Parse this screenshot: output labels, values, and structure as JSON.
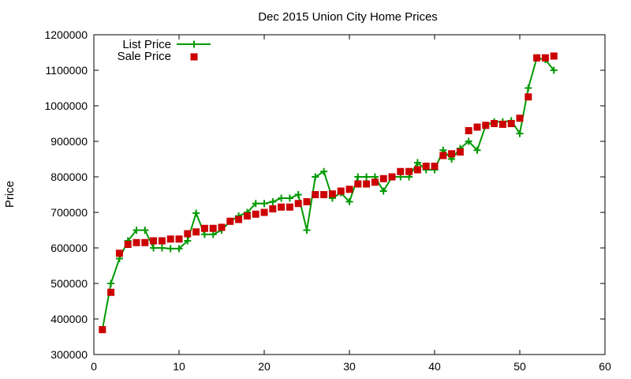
{
  "chart_data": {
    "type": "line",
    "title": "Dec 2015 Union City Home Prices",
    "xlabel": "",
    "ylabel": "Price",
    "xlim": [
      0,
      60
    ],
    "ylim": [
      300000,
      1200000
    ],
    "xticks": [
      0,
      10,
      20,
      30,
      40,
      50,
      60
    ],
    "yticks": [
      300000,
      400000,
      500000,
      600000,
      700000,
      800000,
      900000,
      1000000,
      1100000,
      1200000
    ],
    "grid": false,
    "legend_position": "top-left",
    "series": [
      {
        "name": "List Price",
        "style": "line+plus-markers",
        "color": "#009900",
        "x": [
          1,
          2,
          3,
          4,
          5,
          6,
          7,
          8,
          9,
          10,
          11,
          12,
          13,
          14,
          15,
          16,
          17,
          18,
          19,
          20,
          21,
          22,
          23,
          24,
          25,
          26,
          27,
          28,
          29,
          30,
          31,
          32,
          33,
          34,
          35,
          36,
          37,
          38,
          39,
          40,
          41,
          42,
          43,
          44,
          45,
          46,
          47,
          48,
          49,
          50,
          51,
          52,
          53,
          54
        ],
        "y": [
          370000,
          500000,
          570000,
          620000,
          650000,
          650000,
          600000,
          600000,
          598000,
          598000,
          620000,
          698000,
          638000,
          638000,
          650000,
          675000,
          690000,
          700000,
          725000,
          725000,
          730000,
          740000,
          740000,
          750000,
          650000,
          800000,
          815000,
          740000,
          755000,
          730000,
          800000,
          800000,
          800000,
          760000,
          800000,
          800000,
          800000,
          840000,
          820000,
          820000,
          875000,
          850000,
          880000,
          900000,
          875000,
          945000,
          955000,
          955000,
          958000,
          922000,
          1050000,
          1135000,
          1130000,
          1100000
        ]
      },
      {
        "name": "Sale Price",
        "style": "square-markers",
        "color": "#cc0000",
        "x": [
          1,
          2,
          3,
          4,
          5,
          6,
          7,
          8,
          9,
          10,
          11,
          12,
          13,
          14,
          15,
          16,
          17,
          18,
          19,
          20,
          21,
          22,
          23,
          24,
          25,
          26,
          27,
          28,
          29,
          30,
          31,
          32,
          33,
          34,
          35,
          36,
          37,
          38,
          39,
          40,
          41,
          42,
          43,
          44,
          45,
          46,
          47,
          48,
          49,
          50,
          51,
          52,
          53,
          54
        ],
        "y": [
          370000,
          475000,
          585000,
          610000,
          615000,
          615000,
          620000,
          620000,
          625000,
          625000,
          640000,
          645000,
          655000,
          655000,
          658000,
          675000,
          680000,
          690000,
          695000,
          700000,
          710000,
          715000,
          715000,
          725000,
          730000,
          750000,
          750000,
          752000,
          760000,
          765000,
          780000,
          780000,
          785000,
          795000,
          800000,
          815000,
          815000,
          820000,
          830000,
          830000,
          860000,
          865000,
          870000,
          930000,
          940000,
          945000,
          950000,
          948000,
          950000,
          965000,
          1025000,
          1135000,
          1135000,
          1140000
        ]
      }
    ]
  }
}
